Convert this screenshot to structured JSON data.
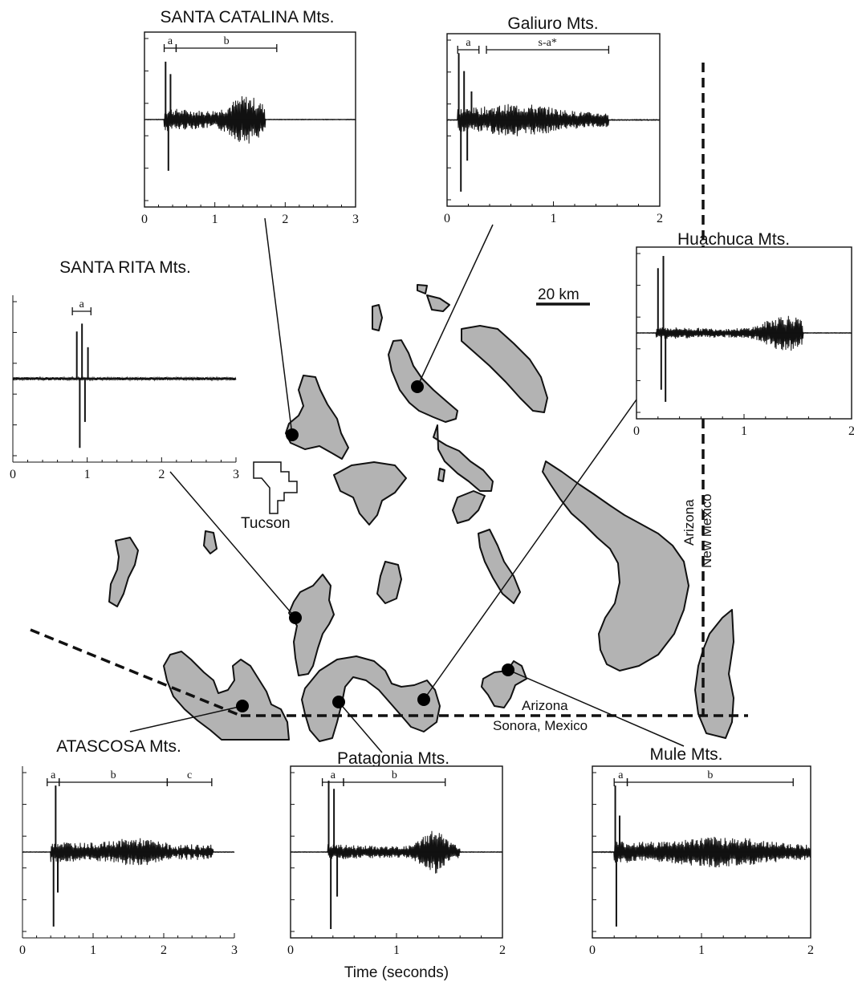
{
  "map": {
    "scale_label": "20 km",
    "city_label": "Tucson",
    "state_labels": [
      "Arizona",
      "New Mexico"
    ],
    "border_labels": [
      "Arizona",
      "Sonora, Mexico"
    ]
  },
  "x_axis_label": "Time (seconds)",
  "colors": {
    "ranges": "#b3b3b3",
    "ink": "#111111"
  },
  "panels": [
    {
      "title": "SANTA CATALINA Mts.",
      "xmax": 3,
      "ticks": [
        "0",
        "1",
        "2",
        "3"
      ],
      "segments": [
        {
          "label": "a",
          "start": 0.28,
          "end": 0.45
        },
        {
          "label": "b",
          "start": 0.45,
          "end": 1.88
        }
      ]
    },
    {
      "title": "Galiuro Mts.",
      "xmax": 2,
      "ticks": [
        "0",
        "1",
        "2"
      ],
      "segments": [
        {
          "label": "a",
          "start": 0.1,
          "end": 0.3
        },
        {
          "label": "s-a*",
          "start": 0.37,
          "end": 1.52
        }
      ]
    },
    {
      "title": "SANTA RITA Mts.",
      "xmax": 3,
      "ticks": [
        "0",
        "1",
        "2",
        "3"
      ],
      "segments": [
        {
          "label": "a",
          "start": 0.8,
          "end": 1.05
        }
      ]
    },
    {
      "title": "Huachuca Mts.",
      "xmax": 2,
      "ticks": [
        "0",
        "1",
        "2"
      ],
      "segments": []
    },
    {
      "title": "ATASCOSA Mts.",
      "xmax": 3,
      "ticks": [
        "0",
        "1",
        "2",
        "3"
      ],
      "segments": [
        {
          "label": "a",
          "start": 0.35,
          "end": 0.52
        },
        {
          "label": "b",
          "start": 0.52,
          "end": 2.05
        },
        {
          "label": "c",
          "start": 2.05,
          "end": 2.68
        }
      ]
    },
    {
      "title": "Patagonia Mts.",
      "xmax": 2,
      "ticks": [
        "0",
        "1",
        "2"
      ],
      "segments": [
        {
          "label": "a",
          "start": 0.3,
          "end": 0.5
        },
        {
          "label": "b",
          "start": 0.5,
          "end": 1.46
        }
      ]
    },
    {
      "title": "Mule Mts.",
      "xmax": 2,
      "ticks": [
        "0",
        "1",
        "2"
      ],
      "segments": [
        {
          "label": "a",
          "start": 0.2,
          "end": 0.32
        },
        {
          "label": "b",
          "start": 0.32,
          "end": 1.84
        }
      ]
    }
  ]
}
